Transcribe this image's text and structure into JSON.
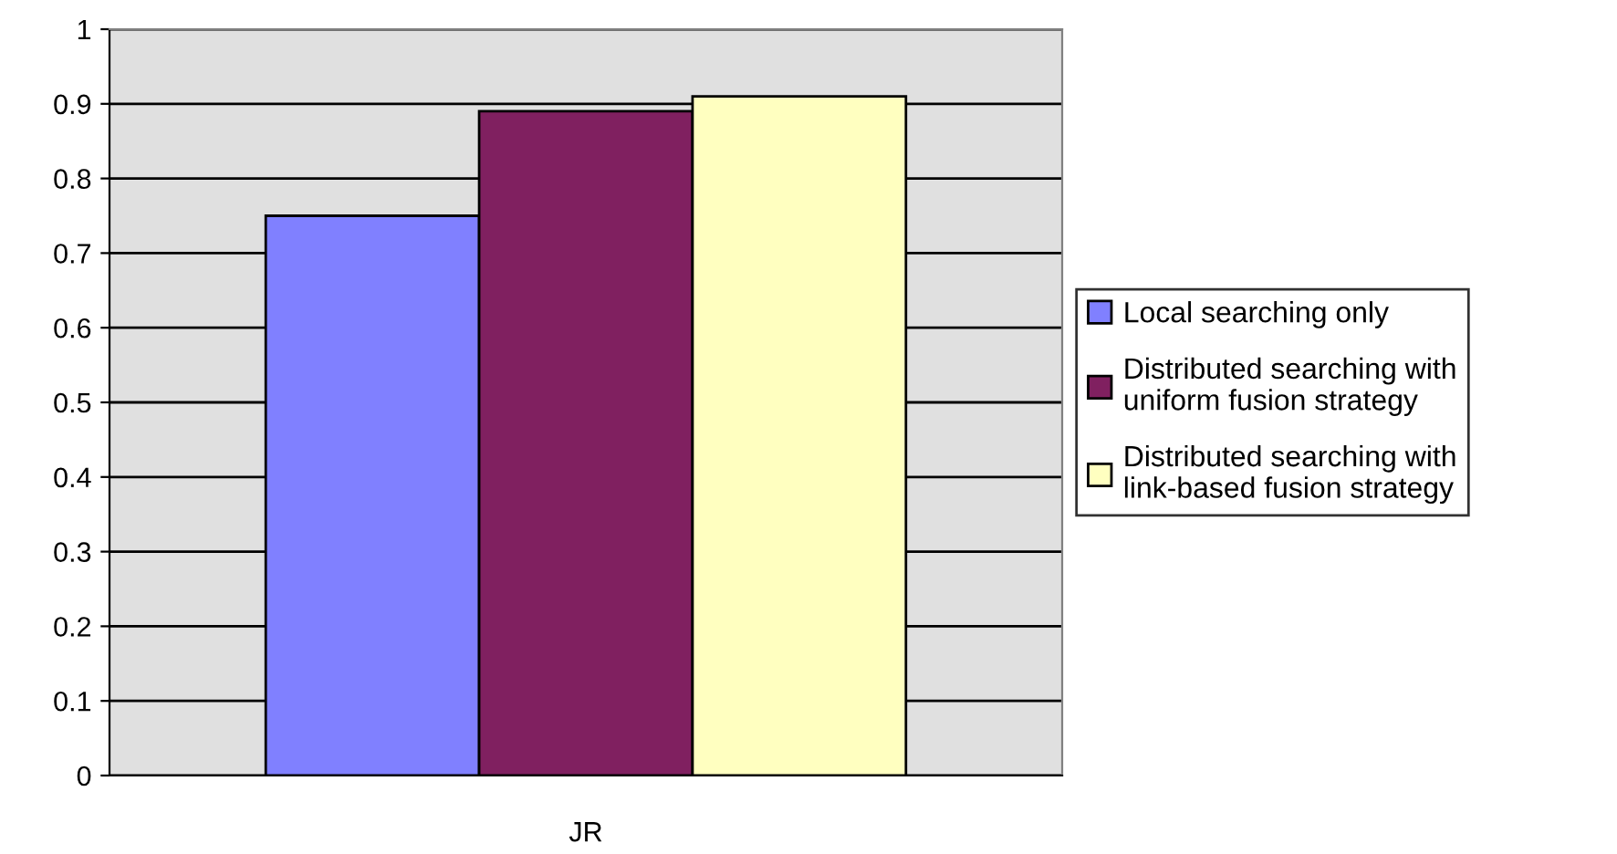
{
  "chart_data": {
    "type": "bar",
    "categories": [
      "JR"
    ],
    "series": [
      {
        "name": "Local searching only",
        "color": "#8080ff",
        "values": [
          0.75
        ]
      },
      {
        "name": "Distributed searching with uniform fusion strategy",
        "color": "#802060",
        "values": [
          0.89
        ]
      },
      {
        "name": "Distributed searching with link-based fusion strategy",
        "color": "#ffffc0",
        "values": [
          0.91
        ]
      }
    ],
    "ylim": [
      0,
      1
    ],
    "yticks": [
      0,
      0.1,
      0.2,
      0.3,
      0.4,
      0.5,
      0.6,
      0.7,
      0.8,
      0.9,
      1
    ],
    "grid": "y",
    "legend": "right"
  }
}
